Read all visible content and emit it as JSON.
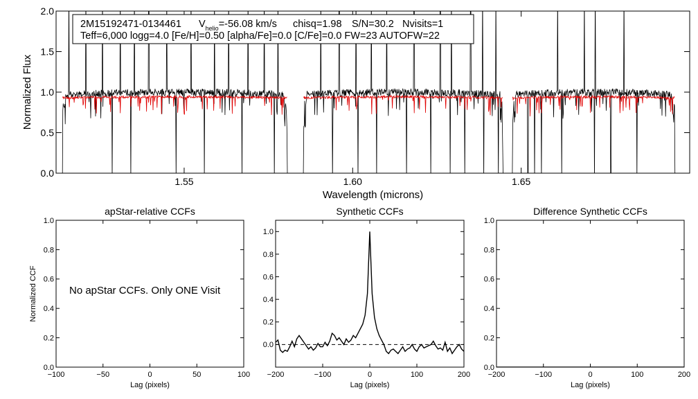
{
  "colors": {
    "observed": "#000000",
    "model": "#e00000",
    "axis": "#000000"
  },
  "info_box": {
    "object": "2M15192471-0134461",
    "vhelio_label": "V",
    "vhelio_sub": "helio",
    "vhelio_value": "=-56.08 km/s",
    "chisq": "chisq=1.98",
    "snr": "S/N=30.2",
    "nvisits": "Nvisits=1",
    "params": "Teff=6,000 logg=4.0 [Fe/H]=0.50 [alpha/Fe]=0.0 [C/Fe]=0.0 FW=23 AUTOFW=22"
  },
  "chart_data": [
    {
      "id": "spectrum",
      "type": "line",
      "title": "",
      "xlabel": "Wavelength (microns)",
      "ylabel": "Normalized Flux",
      "xlim": [
        1.512,
        1.7
      ],
      "ylim": [
        0.0,
        2.0
      ],
      "xticks": [
        1.55,
        1.6,
        1.65
      ],
      "xtick_labels": [
        "1.55",
        "1.60",
        "1.65"
      ],
      "yticks": [
        0.0,
        0.5,
        1.0,
        1.5,
        2.0
      ],
      "ytick_labels": [
        "0.0",
        "0.5",
        "1.0",
        "1.5",
        "2.0"
      ],
      "chips": [
        [
          1.514,
          1.5805
        ],
        [
          1.5855,
          1.6445
        ],
        [
          1.6475,
          1.6955
        ]
      ],
      "series": [
        {
          "name": "Observed spectrum",
          "level": 0.97,
          "color": "#000000"
        },
        {
          "name": "Synthetic model",
          "level": 0.93,
          "color": "#e00000"
        }
      ],
      "spikes_up": [
        1.5158,
        1.5208,
        1.5258,
        1.531,
        1.5352,
        1.5395,
        1.5448,
        1.552,
        1.559,
        1.5632,
        1.569,
        1.5738,
        1.5778,
        1.5905,
        1.596,
        1.601,
        1.6055,
        1.6101,
        1.6182,
        1.626,
        1.6293,
        1.635,
        1.6385,
        1.6425,
        1.6452,
        1.6608,
        1.6687,
        1.672,
        1.6805
      ],
      "spikes_down": [
        1.5286,
        1.5342,
        1.5476,
        1.556,
        1.5672,
        1.5768,
        1.594,
        1.6016,
        1.6071,
        1.616,
        1.6232,
        1.6289,
        1.6333,
        1.6389,
        1.6432,
        1.652,
        1.654,
        1.656,
        1.662,
        1.6717,
        1.6766,
        1.6843
      ]
    },
    {
      "id": "apstar_ccf",
      "type": "line",
      "title": "apStar-relative CCFs",
      "xlabel": "Lag (pixels)",
      "ylabel": "Normalized CCF",
      "xlim": [
        -100,
        100
      ],
      "ylim": [
        0.0,
        1.0
      ],
      "xticks": [
        -100,
        -50,
        0,
        50,
        100
      ],
      "xtick_labels": [
        "−100",
        "−50",
        "0",
        "50",
        "100"
      ],
      "yticks": [
        0.0,
        0.2,
        0.4,
        0.6,
        0.8,
        1.0
      ],
      "ytick_labels": [
        "0.0",
        "0.2",
        "0.4",
        "0.6",
        "0.8",
        "1.0"
      ],
      "annotation": "No apStar CCFs.  Only ONE Visit",
      "series": []
    },
    {
      "id": "synthetic_ccf",
      "type": "line",
      "title": "Synthetic CCFs",
      "xlabel": "Lag (pixels)",
      "ylabel": "",
      "xlim": [
        -200,
        200
      ],
      "ylim": [
        -0.2,
        1.1
      ],
      "xticks": [
        -200,
        -100,
        0,
        100,
        200
      ],
      "xtick_labels": [
        "−200",
        "−100",
        "0",
        "100",
        "200"
      ],
      "yticks": [
        0.0,
        0.2,
        0.4,
        0.6,
        0.8,
        1.0
      ],
      "ytick_labels": [
        "0.0",
        "0.2",
        "0.4",
        "0.6",
        "0.8",
        "1.0"
      ],
      "zero_line": 0.0,
      "series": [
        {
          "name": "Synthetic CCF",
          "x": [
            -200,
            -195,
            -190,
            -185,
            -180,
            -175,
            -170,
            -165,
            -160,
            -155,
            -150,
            -145,
            -140,
            -135,
            -130,
            -125,
            -120,
            -115,
            -110,
            -105,
            -100,
            -95,
            -90,
            -85,
            -80,
            -75,
            -70,
            -65,
            -60,
            -55,
            -50,
            -45,
            -40,
            -35,
            -30,
            -25,
            -20,
            -15,
            -10,
            -5,
            0,
            5,
            10,
            15,
            20,
            25,
            30,
            35,
            40,
            45,
            50,
            55,
            60,
            65,
            70,
            75,
            80,
            85,
            90,
            95,
            100,
            105,
            110,
            115,
            120,
            125,
            130,
            135,
            140,
            145,
            150,
            155,
            160,
            165,
            170,
            175,
            180,
            185,
            190,
            195,
            200
          ],
          "y": [
            0.02,
            0.04,
            -0.05,
            -0.07,
            -0.05,
            -0.06,
            -0.02,
            0.03,
            -0.02,
            0.05,
            0.08,
            0.05,
            0.02,
            -0.01,
            -0.04,
            -0.02,
            -0.05,
            -0.03,
            0.01,
            -0.02,
            -0.02,
            0.02,
            -0.01,
            0.03,
            0.1,
            0.08,
            0.04,
            0.06,
            0.03,
            0.0,
            0.05,
            0.02,
            0.04,
            0.08,
            0.06,
            0.1,
            0.14,
            0.18,
            0.26,
            0.45,
            1.0,
            0.45,
            0.24,
            0.14,
            0.08,
            0.04,
            0.0,
            -0.06,
            -0.08,
            -0.05,
            -0.04,
            -0.06,
            -0.08,
            -0.05,
            -0.02,
            -0.06,
            -0.04,
            -0.03,
            0.0,
            -0.04,
            -0.06,
            -0.02,
            0.0,
            -0.03,
            -0.02,
            -0.01,
            0.0,
            0.03,
            -0.01,
            -0.04,
            -0.03,
            -0.05,
            0.02,
            -0.06,
            -0.03,
            -0.08,
            -0.05,
            -0.02,
            0.0,
            -0.04,
            -0.06
          ]
        }
      ]
    },
    {
      "id": "difference_ccf",
      "type": "line",
      "title": "Difference Synthetic CCFs",
      "xlabel": "Lag (pixels)",
      "ylabel": "",
      "xlim": [
        -200,
        200
      ],
      "ylim": [
        0.0,
        1.0
      ],
      "xticks": [
        -200,
        -100,
        0,
        100,
        200
      ],
      "xtick_labels": [
        "−200",
        "−100",
        "0",
        "100",
        "200"
      ],
      "yticks": [
        0.0,
        0.2,
        0.4,
        0.6,
        0.8,
        1.0
      ],
      "ytick_labels": [
        "0.0",
        "0.2",
        "0.4",
        "0.6",
        "0.8",
        "1.0"
      ],
      "series": [
        {
          "name": "Difference CCF",
          "x": [
            -200,
            200
          ],
          "y": [
            0.0,
            0.0
          ]
        }
      ]
    }
  ]
}
